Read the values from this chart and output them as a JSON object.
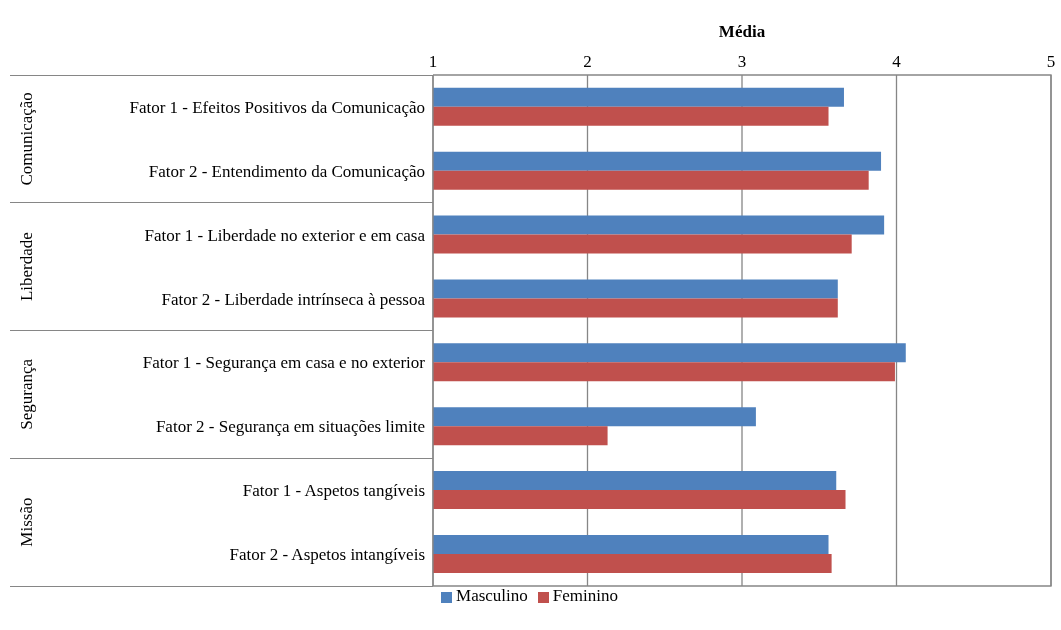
{
  "chart_data": {
    "type": "bar",
    "orientation": "horizontal",
    "xlabel": "Média",
    "categories": [
      "Fator 1 - Efeitos Positivos da Comunicação",
      "Fator 2 - Entendimento da Comunicação",
      "Fator 1 - Liberdade no exterior e em casa",
      "Fator 2 - Liberdade intrínseca à pessoa",
      "Fator 1 - Segurança em casa e no exterior",
      "Fator 2 - Segurança em situações limite",
      "Fator 1 - Aspetos tangíveis",
      "Fator 2 - Aspetos intangíveis"
    ],
    "series": [
      {
        "name": "Masculino",
        "color": "#4f81bd",
        "values": [
          3.66,
          3.9,
          3.92,
          3.62,
          4.06,
          3.09,
          3.61,
          3.56
        ]
      },
      {
        "name": "Feminino",
        "color": "#c0504d",
        "values": [
          3.56,
          3.82,
          3.71,
          3.62,
          3.99,
          2.13,
          3.67,
          3.58
        ]
      }
    ],
    "xlim": [
      1,
      5
    ],
    "xticks": [
      1,
      2,
      3,
      4,
      5
    ],
    "grid": "x",
    "legend": "bottom",
    "annotations": [
      "Comunicação",
      "Liberdade",
      "Segurança",
      "Missão"
    ]
  }
}
